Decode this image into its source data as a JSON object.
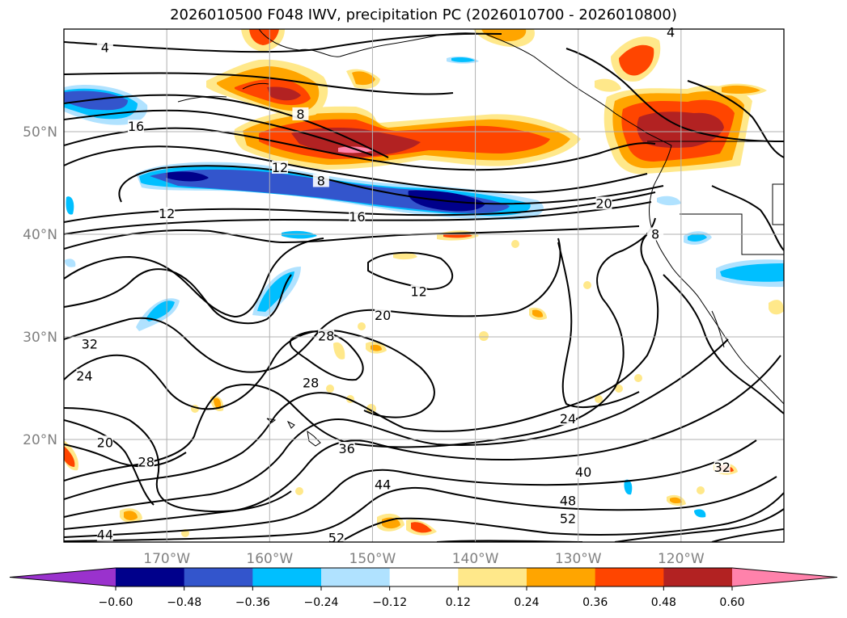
{
  "title": "2026010500 F048 IWV, precipitation PC (2026010700 - 2026010800)",
  "map": {
    "extent": {
      "lon_min": -180,
      "lon_max": -110,
      "lat_min": 10,
      "lat_max": 60
    },
    "lat_ticks": [
      20,
      30,
      40,
      50
    ],
    "lon_ticks": [
      -170,
      -160,
      -150,
      -140,
      -130,
      -120
    ],
    "lat_tick_labels": [
      "20°N",
      "30°N",
      "40°N",
      "50°N"
    ],
    "lon_tick_labels": [
      "170°W",
      "160°W",
      "150°W",
      "140°W",
      "130°W",
      "120°W"
    ],
    "grid": true,
    "contour_labels": [
      {
        "text": "4",
        "lon": -176,
        "lat": 58
      },
      {
        "text": "4",
        "lon": -121,
        "lat": 59.5
      },
      {
        "text": "16",
        "lon": -173,
        "lat": 50.3
      },
      {
        "text": "8",
        "lon": -157,
        "lat": 51.5
      },
      {
        "text": "12",
        "lon": -159,
        "lat": 46.3
      },
      {
        "text": "8",
        "lon": -155,
        "lat": 45
      },
      {
        "text": "12",
        "lon": -170,
        "lat": 41.8
      },
      {
        "text": "16",
        "lon": -151.5,
        "lat": 41.5
      },
      {
        "text": "20",
        "lon": -127.5,
        "lat": 42.8
      },
      {
        "text": "8",
        "lon": -122.5,
        "lat": 39.8
      },
      {
        "text": "12",
        "lon": -145.5,
        "lat": 34.2
      },
      {
        "text": "20",
        "lon": -149,
        "lat": 31.9
      },
      {
        "text": "28",
        "lon": -154.5,
        "lat": 29.9
      },
      {
        "text": "32",
        "lon": -177.5,
        "lat": 29.1
      },
      {
        "text": "24",
        "lon": -178,
        "lat": 26
      },
      {
        "text": "28",
        "lon": -156,
        "lat": 25.3
      },
      {
        "text": "24",
        "lon": -131,
        "lat": 21.8
      },
      {
        "text": "20",
        "lon": -176,
        "lat": 19.5
      },
      {
        "text": "28",
        "lon": -172,
        "lat": 17.6
      },
      {
        "text": "36",
        "lon": -152.5,
        "lat": 18.9
      },
      {
        "text": "32",
        "lon": -116,
        "lat": 17.1
      },
      {
        "text": "44",
        "lon": -149,
        "lat": 15.4
      },
      {
        "text": "40",
        "lon": -129.5,
        "lat": 16.6
      },
      {
        "text": "48",
        "lon": -131,
        "lat": 13.8
      },
      {
        "text": "52",
        "lon": -131,
        "lat": 12.1
      },
      {
        "text": "44",
        "lon": -176,
        "lat": 10.5
      },
      {
        "text": "52",
        "lon": -153.5,
        "lat": 10.2
      }
    ]
  },
  "colorbar": {
    "boundaries": [
      -0.6,
      -0.48,
      -0.36,
      -0.24,
      -0.12,
      0.12,
      0.24,
      0.36,
      0.48,
      0.6
    ],
    "tick_labels": [
      "−0.60",
      "−0.48",
      "−0.36",
      "−0.24",
      "−0.12",
      "0.12",
      "0.24",
      "0.36",
      "0.48",
      "0.60"
    ],
    "colors": [
      "#9a32cd",
      "#00008b",
      "#3355cc",
      "#00bfff",
      "#b0e2ff",
      "#ffffff",
      "#ffe88a",
      "#ffa500",
      "#ff4500",
      "#b22222",
      "#ff82ab"
    ],
    "extend": "both"
  },
  "precip_colors": {
    "neg_strong": "#00008b",
    "neg_mid": "#3355cc",
    "neg_light": "#00bfff",
    "neg_faint": "#b0e2ff",
    "pos_faint": "#ffe88a",
    "pos_light": "#ffa500",
    "pos_mid": "#ff4500",
    "pos_strong": "#b22222",
    "pos_max": "#ff82ab"
  }
}
